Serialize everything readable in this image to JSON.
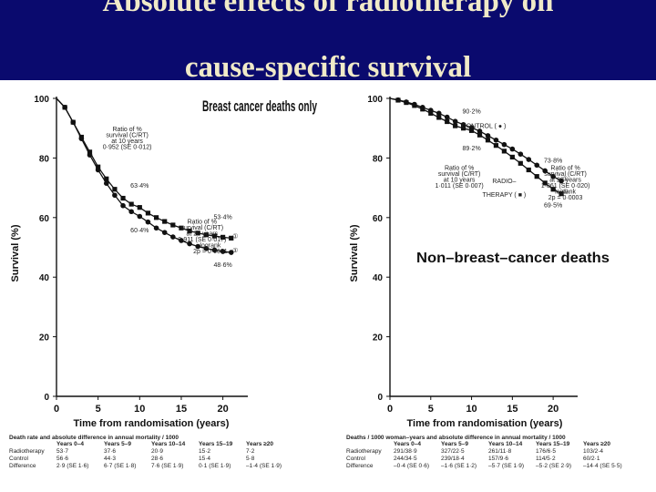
{
  "title_line1": "Absolute effects of radiotherapy on",
  "title_line2": "cause-specific survival",
  "chart_data": [
    {
      "type": "line",
      "title": "Breast cancer deaths only",
      "xlabel": "Time from randomisation (years)",
      "ylabel": "Survival (%)",
      "xlim": [
        0,
        23
      ],
      "ylim": [
        0,
        100
      ],
      "x_ticks": [
        "0",
        "5",
        "10",
        "15",
        "20"
      ],
      "y_ticks": [
        "0",
        "20",
        "40",
        "60",
        "80",
        "100"
      ],
      "series": [
        {
          "name": "RADIOTHERAPY ( ■ )",
          "marker": "square",
          "color": "#111111",
          "x": [
            0,
            1,
            2,
            3,
            4,
            5,
            6,
            7,
            8,
            9,
            10,
            11,
            12,
            13,
            14,
            15,
            16,
            17,
            18,
            19,
            20,
            21
          ],
          "y": [
            100,
            97,
            92,
            87,
            82,
            77,
            73,
            69.5,
            66.5,
            64.5,
            63.4,
            61.5,
            60,
            58.7,
            57.5,
            56.5,
            55.5,
            54.8,
            54.2,
            53.8,
            53.4,
            53.1
          ]
        },
        {
          "name": "CONTROL ( ● )",
          "marker": "circle",
          "color": "#111111",
          "x": [
            0,
            1,
            2,
            3,
            4,
            5,
            6,
            7,
            8,
            9,
            10,
            11,
            12,
            13,
            14,
            15,
            16,
            17,
            18,
            19,
            20,
            21
          ],
          "y": [
            100,
            97,
            92,
            86.5,
            81,
            76,
            71.5,
            67.5,
            64,
            62,
            60.4,
            58.5,
            56.5,
            55,
            53.5,
            52.3,
            51.2,
            50.3,
            49.6,
            49.1,
            48.6,
            48.3
          ]
        }
      ],
      "annotations": [
        {
          "text": "Ratio of %",
          "x": 8.5,
          "y": 89
        },
        {
          "text": "survival (C/RT)",
          "x": 8.5,
          "y": 87
        },
        {
          "text": "at 10 years",
          "x": 8.5,
          "y": 85
        },
        {
          "text": "0·952 (SE 0·012)",
          "x": 8.5,
          "y": 83
        },
        {
          "text": "63·4%",
          "x": 10,
          "y": 70
        },
        {
          "text": "60·4%",
          "x": 10,
          "y": 55
        },
        {
          "text": "53·4%",
          "x": 20,
          "y": 59.5
        },
        {
          "text": "48·6%",
          "x": 20,
          "y": 43.5
        },
        {
          "text": "Ratio of %",
          "x": 17.5,
          "y": 58
        },
        {
          "text": "survival (C/RT)",
          "x": 17.5,
          "y": 56
        },
        {
          "text": "at 20 years",
          "x": 17.5,
          "y": 54
        },
        {
          "text": "0·911 (SE 0·017)",
          "x": 17.5,
          "y": 52
        },
        {
          "text": "logrank",
          "x": 18.5,
          "y": 50
        },
        {
          "text": "2p = 0·0001",
          "x": 18.5,
          "y": 48
        },
        {
          "text": "①",
          "x": 21.5,
          "y": 53.1
        },
        {
          "text": "①",
          "x": 21.5,
          "y": 48.3
        }
      ],
      "table": {
        "heading": "Death rate and absolute difference in annual mortality / 1000",
        "columns": [
          "Years 0–4",
          "Years 5–9",
          "Years 10–14",
          "Years 15–19",
          "Years ≥20"
        ],
        "rows": [
          {
            "label": "Radiotherapy",
            "values": [
              "53·7",
              "37·6",
              "20·9",
              "15·2",
              "7·2"
            ]
          },
          {
            "label": "Control",
            "values": [
              "56·6",
              "44·3",
              "28·6",
              "15·4",
              "5·8"
            ]
          },
          {
            "label": "Difference",
            "values": [
              "2·9 (SE 1·6)",
              "6·7 (SE 1·8)",
              "7·6 (SE 1·9)",
              "0·1 (SE 1·9)",
              "–1·4 (SE 1·9)"
            ]
          }
        ]
      }
    },
    {
      "type": "line",
      "title": "Non–breast–cancer deaths",
      "xlabel": "Time from randomisation (years)",
      "ylabel": "Survival (%)",
      "xlim": [
        0,
        23
      ],
      "ylim": [
        0,
        100
      ],
      "x_ticks": [
        "0",
        "5",
        "10",
        "15",
        "20"
      ],
      "y_ticks": [
        "0",
        "20",
        "40",
        "60",
        "80",
        "100"
      ],
      "series": [
        {
          "name": "CONTROL ( ● )",
          "marker": "circle",
          "color": "#111111",
          "x": [
            0,
            1,
            2,
            3,
            4,
            5,
            6,
            7,
            8,
            9,
            10,
            11,
            12,
            13,
            14,
            15,
            16,
            17,
            18,
            19,
            20,
            21
          ],
          "y": [
            100,
            99.5,
            98.8,
            98,
            97,
            96,
            95,
            93.7,
            92.3,
            91.2,
            90.2,
            89,
            87.5,
            86,
            84.5,
            83,
            81.3,
            79.5,
            77.6,
            75.7,
            73.8,
            72.3
          ]
        },
        {
          "name": "RADIO–THERAPY ( ■ )",
          "marker": "square",
          "color": "#111111",
          "x": [
            0,
            1,
            2,
            3,
            4,
            5,
            6,
            7,
            8,
            9,
            10,
            11,
            12,
            13,
            14,
            15,
            16,
            17,
            18,
            19,
            20,
            21
          ],
          "y": [
            100,
            99.4,
            98.6,
            97.6,
            96.4,
            95,
            93.6,
            92.2,
            90.8,
            90,
            89.2,
            87.7,
            86,
            84.2,
            82.3,
            80.3,
            78.2,
            76,
            73.8,
            71.6,
            69.5,
            68
          ]
        }
      ],
      "annotations": [
        {
          "text": "90·2%",
          "x": 10,
          "y": 95
        },
        {
          "text": "CONTROL ( ● )",
          "x": 11.5,
          "y": 90
        },
        {
          "text": "89·2%",
          "x": 10,
          "y": 82.5
        },
        {
          "text": "Ratio of %",
          "x": 8.5,
          "y": 76
        },
        {
          "text": "survival (C/RT)",
          "x": 8.5,
          "y": 74
        },
        {
          "text": "at 10 years",
          "x": 8.5,
          "y": 72
        },
        {
          "text": "1·011 (SE 0·007)",
          "x": 8.5,
          "y": 70
        },
        {
          "text": "RADIO–",
          "x": 14,
          "y": 71.5
        },
        {
          "text": "THERAPY ( ■ )",
          "x": 14,
          "y": 67
        },
        {
          "text": "73·8%",
          "x": 20,
          "y": 78.5
        },
        {
          "text": "69·5%",
          "x": 20,
          "y": 63.5
        },
        {
          "text": "Ratio of %",
          "x": 21.5,
          "y": 76
        },
        {
          "text": "survival (C/RT)",
          "x": 21.5,
          "y": 74
        },
        {
          "text": "at 20 years",
          "x": 21.5,
          "y": 72
        },
        {
          "text": "1·061 (SE 0·020)",
          "x": 21.5,
          "y": 70
        },
        {
          "text": "logrank",
          "x": 21.5,
          "y": 68
        },
        {
          "text": "2p = 0·0003",
          "x": 21.5,
          "y": 66
        },
        {
          "text": "①",
          "x": 21.5,
          "y": 72.3
        },
        {
          "text": "①",
          "x": 21.5,
          "y": 68
        }
      ],
      "table": {
        "heading": "Deaths / 1000 woman–years and absolute difference in annual mortality / 1000",
        "columns": [
          "Years 0–4",
          "Years 5–9",
          "Years 10–14",
          "Years 15–19",
          "Years ≥20"
        ],
        "rows": [
          {
            "label": "Radiotherapy",
            "values": [
              "291/38·9",
              "327/22·5",
              "261/11·8",
              "176/6·5",
              "103/2·4"
            ]
          },
          {
            "label": "Control",
            "values": [
              "244/34·5",
              "239/18·4",
              "157/9·6",
              "114/5·2",
              "60/2·1"
            ]
          },
          {
            "label": "Difference",
            "values": [
              "–0·4 (SE 0·6)",
              "–1·6 (SE 1·2)",
              "–5·7 (SE 1·9)",
              "–5·2 (SE 2·9)",
              "–14·4 (SE 5·5)"
            ]
          }
        ]
      }
    }
  ]
}
